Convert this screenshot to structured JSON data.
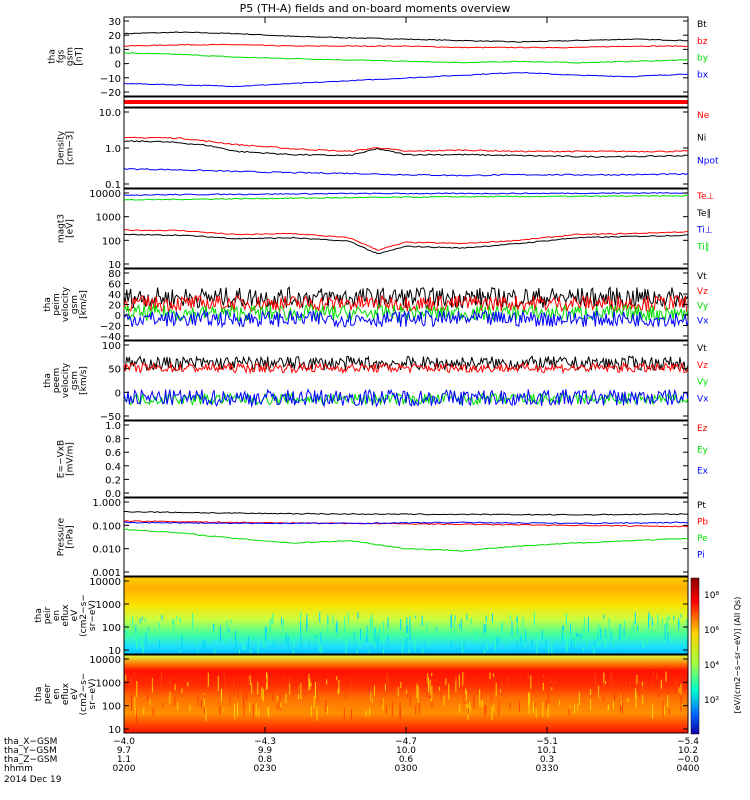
{
  "title": "P5 (TH-A) fields and on-board moments overview",
  "colors": {
    "black": "#000000",
    "red": "#ff0000",
    "blue": "#0000ff",
    "green": "#00dd00"
  },
  "chart_data": [
    {
      "type": "line",
      "ylabel": [
        "tha",
        "fgs",
        "gsm",
        "[nT]"
      ],
      "yticks": [
        "30",
        "20",
        "10",
        "0",
        "−10",
        "−20"
      ],
      "ylim": [
        -25,
        32
      ],
      "legend": [
        "Bt",
        "bz",
        "by",
        "bx"
      ],
      "series": [
        {
          "name": "Bt",
          "x": [
            0,
            0.1,
            0.2,
            0.3,
            0.4,
            0.5,
            0.6,
            0.7,
            0.8,
            0.9,
            1
          ],
          "values": [
            20,
            21,
            20,
            18,
            17,
            16,
            15,
            14,
            15,
            16,
            15
          ]
        },
        {
          "name": "bz",
          "x": [
            0,
            0.1,
            0.2,
            0.3,
            0.4,
            0.5,
            0.6,
            0.7,
            0.8,
            0.9,
            1
          ],
          "values": [
            11,
            12,
            12,
            11,
            11,
            11,
            10,
            10,
            10,
            11,
            11
          ]
        },
        {
          "name": "by",
          "x": [
            0,
            0.1,
            0.2,
            0.3,
            0.4,
            0.5,
            0.6,
            0.7,
            0.8,
            0.9,
            1
          ],
          "values": [
            6,
            5,
            3,
            2,
            1,
            0,
            -1,
            0,
            -1,
            0,
            1
          ]
        },
        {
          "name": "bx",
          "x": [
            0,
            0.1,
            0.2,
            0.3,
            0.4,
            0.5,
            0.6,
            0.7,
            0.8,
            0.9,
            1
          ],
          "values": [
            -16,
            -17,
            -18,
            -16,
            -14,
            -12,
            -10,
            -8,
            -10,
            -11,
            -9
          ]
        }
      ]
    },
    {
      "type": "bar",
      "note": "red status bar",
      "ylabel": [],
      "yticks": [],
      "legend": []
    },
    {
      "type": "line",
      "ylabel": [
        "Density",
        "[cm−3]"
      ],
      "yticks": [
        "10.0",
        "1.0",
        "0.1"
      ],
      "ylim": [
        0.08,
        20
      ],
      "log": true,
      "legend": [
        "Ne",
        "Ni",
        "Npot"
      ],
      "series": [
        {
          "name": "Ne",
          "x": [
            0,
            0.05,
            0.1,
            0.15,
            0.2,
            0.3,
            0.4,
            0.45,
            0.5,
            0.6,
            0.7,
            0.8,
            0.9,
            1
          ],
          "values": [
            2.5,
            2.6,
            2.5,
            2.0,
            1.6,
            1.2,
            1.0,
            1.3,
            1.0,
            1.1,
            1.0,
            1.0,
            1.0,
            1.0
          ]
        },
        {
          "name": "Ni",
          "x": [
            0,
            0.05,
            0.1,
            0.15,
            0.2,
            0.3,
            0.4,
            0.45,
            0.5,
            0.6,
            0.7,
            0.8,
            0.9,
            1
          ],
          "values": [
            2.0,
            2.0,
            1.8,
            1.5,
            1.0,
            0.8,
            0.75,
            1.2,
            0.8,
            0.8,
            0.75,
            0.7,
            0.7,
            0.75
          ]
        },
        {
          "name": "Npot",
          "x": [
            0,
            0.1,
            0.2,
            0.3,
            0.4,
            0.5,
            0.6,
            0.7,
            0.8,
            0.9,
            1
          ],
          "values": [
            0.3,
            0.28,
            0.25,
            0.23,
            0.22,
            0.2,
            0.19,
            0.2,
            0.2,
            0.2,
            0.21
          ]
        }
      ]
    },
    {
      "type": "line",
      "ylabel": [
        "magt3",
        "[eV]"
      ],
      "yticks": [
        "10000",
        "1000",
        "100",
        "10"
      ],
      "ylim": [
        10,
        12000
      ],
      "log": true,
      "legend": [
        "Te⊥",
        "Te∥",
        "Ti⊥",
        "Ti∥"
      ],
      "series": [
        {
          "name": "Te⊥",
          "x": [
            0,
            0.1,
            0.2,
            0.3,
            0.4,
            0.45,
            0.5,
            0.6,
            0.7,
            0.8,
            0.9,
            1
          ],
          "values": [
            300,
            290,
            200,
            220,
            150,
            50,
            100,
            90,
            120,
            200,
            220,
            260
          ]
        },
        {
          "name": "Te∥",
          "x": [
            0,
            0.1,
            0.2,
            0.3,
            0.4,
            0.45,
            0.5,
            0.6,
            0.7,
            0.8,
            0.9,
            1
          ],
          "values": [
            200,
            190,
            140,
            150,
            110,
            35,
            70,
            60,
            90,
            150,
            170,
            190
          ]
        },
        {
          "name": "Ti⊥",
          "x": [
            0,
            0.2,
            0.4,
            0.6,
            0.8,
            1
          ],
          "values": [
            7000,
            7500,
            8000,
            8000,
            8200,
            8500
          ]
        },
        {
          "name": "Ti∥",
          "x": [
            0,
            0.2,
            0.4,
            0.6,
            0.8,
            1
          ],
          "values": [
            4500,
            5000,
            5500,
            6000,
            6200,
            6500
          ]
        }
      ]
    },
    {
      "type": "line",
      "ylabel": [
        "tha",
        "peim",
        "velocity",
        "gsm",
        "[km/s]"
      ],
      "yticks": [
        "80",
        "60",
        "40",
        "20",
        "0",
        "−20",
        "−40"
      ],
      "ylim": [
        -42,
        82
      ],
      "noisy": true,
      "legend": [
        "Vt",
        "Vz",
        "Vy",
        "Vx"
      ],
      "series": [
        {
          "name": "Vt",
          "base": 32,
          "amp": 18
        },
        {
          "name": "Vz",
          "base": 22,
          "amp": 14
        },
        {
          "name": "Vy",
          "base": 5,
          "amp": 14
        },
        {
          "name": "Vx",
          "base": -5,
          "amp": 14
        }
      ]
    },
    {
      "type": "line",
      "ylabel": [
        "tha",
        "peem",
        "velocity",
        "gsm",
        "[km/s]"
      ],
      "yticks": [
        "100",
        "50",
        "0",
        "−50"
      ],
      "ylim": [
        -60,
        110
      ],
      "noisy": true,
      "legend": [
        "Vt",
        "Vz",
        "Vy",
        "Vx"
      ],
      "series": [
        {
          "name": "Vt",
          "base": 62,
          "amp": 15
        },
        {
          "name": "Vz",
          "base": 52,
          "amp": 10
        },
        {
          "name": "Vy",
          "base": -15,
          "amp": 12
        },
        {
          "name": "Vx",
          "base": -12,
          "amp": 18
        }
      ]
    },
    {
      "type": "line",
      "ylabel": [
        "E=−VxB",
        "[mV/m]"
      ],
      "yticks": [
        "1.0",
        "0.8",
        "0.6",
        "0.4",
        "0.2",
        "0.0"
      ],
      "ylim": [
        0,
        1
      ],
      "legend": [
        "Ez",
        "Ey",
        "Ex"
      ],
      "series": []
    },
    {
      "type": "line",
      "ylabel": [
        "Pressure",
        "[nPa]"
      ],
      "yticks": [
        "1.000",
        "0.100",
        "0.010",
        "0.001"
      ],
      "ylim": [
        0.001,
        1.2
      ],
      "log": true,
      "legend": [
        "Pt",
        "Pb",
        "Pe",
        "Pi"
      ],
      "series": [
        {
          "name": "Pt",
          "x": [
            0,
            0.2,
            0.4,
            0.6,
            0.8,
            1
          ],
          "values": [
            0.35,
            0.3,
            0.28,
            0.27,
            0.26,
            0.28
          ]
        },
        {
          "name": "Pb",
          "x": [
            0,
            0.2,
            0.4,
            0.6,
            0.8,
            1
          ],
          "values": [
            0.15,
            0.13,
            0.12,
            0.11,
            0.1,
            0.09
          ]
        },
        {
          "name": "Pe",
          "x": [
            0,
            0.1,
            0.2,
            0.3,
            0.4,
            0.5,
            0.6,
            0.7,
            0.8,
            0.9,
            1
          ],
          "values": [
            0.07,
            0.05,
            0.03,
            0.02,
            0.025,
            0.012,
            0.01,
            0.015,
            0.02,
            0.025,
            0.03
          ]
        },
        {
          "name": "Pi",
          "x": [
            0,
            0.2,
            0.4,
            0.6,
            0.8,
            1
          ],
          "values": [
            0.13,
            0.12,
            0.12,
            0.13,
            0.12,
            0.13
          ]
        }
      ]
    },
    {
      "type": "heatmap",
      "ylabel": [
        "tha",
        "peir",
        "en",
        "eflux",
        "eV",
        "(cm2−s−",
        "sr−eV)"
      ],
      "yticks": [
        "10000",
        "1000",
        "100",
        "10"
      ]
    },
    {
      "type": "heatmap",
      "ylabel": [
        "tha",
        "peer",
        "en",
        "eflux",
        "eV",
        "(cm2−s−",
        "sr−eV)"
      ],
      "yticks": [
        "10000",
        "1000",
        "100",
        "10"
      ]
    }
  ],
  "colorbar": {
    "ticks": [
      "10⁸",
      "10⁶",
      "10⁴",
      "10²"
    ],
    "label": "[eV/(cm2−s−sr−eV)] (All Qs)"
  },
  "xaxis": {
    "ticks": [
      "0200",
      "0230",
      "0300",
      "0330",
      "0400"
    ],
    "rows": [
      {
        "label": "tha_X−GSM",
        "values": [
          "−4.0",
          "−4.3",
          "−4.7",
          "−5.1",
          "−5.4"
        ]
      },
      {
        "label": "tha_Y−GSM",
        "values": [
          "9.7",
          "9.9",
          "10.0",
          "10.1",
          "10.2"
        ]
      },
      {
        "label": "tha_Z−GSM",
        "values": [
          "1.1",
          "0.8",
          "0.6",
          "0.3",
          "−0.0"
        ]
      },
      {
        "label": "hhmm",
        "values": [
          "0200",
          "0230",
          "0300",
          "0330",
          "0400"
        ]
      }
    ],
    "date": "2014 Dec 19"
  }
}
